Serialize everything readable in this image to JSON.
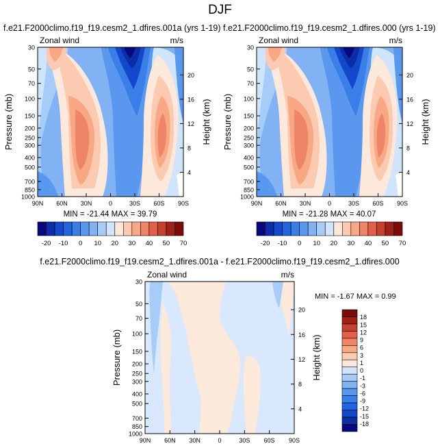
{
  "title": "DJF",
  "panels": [
    {
      "id": "p1",
      "title": "f.e21.F2000climo.f19_f19.cesm2_1.dfires.001a (yrs 1-19)",
      "left_label": "Zonal wind",
      "right_label": "m/s",
      "ylabel": "Pressure (mb)",
      "ylabel_right": "Height (km)",
      "stats": "MIN = -21.44   MAX =  39.79"
    },
    {
      "id": "p2",
      "title": "f.e21.F2000climo.f19_f19.cesm2_1.dfires.000 (yrs 1-19)",
      "left_label": "Zonal wind",
      "right_label": "m/s",
      "ylabel": "Pressure (mb)",
      "ylabel_right": "Height (km)",
      "stats": "MIN = -21.28   MAX =  40.07"
    },
    {
      "id": "p3",
      "title": "f.e21.F2000climo.f19_f19.cesm2_1.dfires.001a - f.e21.F2000climo.f19_f19.cesm2_1.dfires.000",
      "left_label": "Zonal wind",
      "right_label": "m/s",
      "ylabel": "Pressure (mb)",
      "ylabel_right": "Height (km)",
      "stats": "MIN = -1.67   MAX =  0.99"
    }
  ],
  "colors": {
    "abs_scale": [
      "#08087e",
      "#0c2ca8",
      "#1448cc",
      "#2064e0",
      "#3a7ee8",
      "#5a98f0",
      "#80b2f4",
      "#a8ccf8",
      "#d0e4fc",
      "#fde8dc",
      "#fccab0",
      "#f8a884",
      "#f08466",
      "#e0604a",
      "#c8402e",
      "#a02016",
      "#7a0c0c"
    ],
    "diff_scale": [
      "#08087e",
      "#0c2ca8",
      "#1448cc",
      "#2064e0",
      "#3a7ee8",
      "#5a98f0",
      "#80b2f4",
      "#a8ccf8",
      "#d0e4fc",
      "#fde8dc",
      "#fccab0",
      "#f8a884",
      "#f08466",
      "#e0604a",
      "#c8402e",
      "#a02016",
      "#7a0c0c"
    ]
  },
  "chart_data": [
    {
      "type": "heatmap",
      "title": "f.e21.F2000climo.f19_f19.cesm2_1.dfires.001a (yrs 1-19)",
      "ylabel": "Pressure (mb)",
      "xlabel": "",
      "x_ticks": [
        "90N",
        "60N",
        "30N",
        "0",
        "30S",
        "60S",
        "90S"
      ],
      "y_ticks": [
        "30",
        "50",
        "70",
        "100",
        "150",
        "200",
        "250",
        "300",
        "400",
        "500",
        "700",
        "850",
        "1000"
      ],
      "y_ticks_right": [
        "20",
        "16",
        "12",
        "8",
        "4"
      ],
      "ylim": [
        1000,
        30
      ],
      "colorbar_labels": [
        "-20",
        "-10",
        "0",
        "10",
        "20",
        "30",
        "40",
        "50",
        "70"
      ],
      "min": -21.44,
      "max": 39.79,
      "fields": [
        {
          "lat": 30,
          "p": 200,
          "u": 38
        },
        {
          "lat": -45,
          "p": 200,
          "u": 29
        },
        {
          "lat": 65,
          "p": 40,
          "u": 14
        },
        {
          "lat": -15,
          "p": 35,
          "u": -21
        }
      ]
    },
    {
      "type": "heatmap",
      "title": "f.e21.F2000climo.f19_f19.cesm2_1.dfires.000 (yrs 1-19)",
      "ylabel": "Pressure (mb)",
      "xlabel": "",
      "x_ticks": [
        "90N",
        "60N",
        "30N",
        "0",
        "30S",
        "60S",
        "90S"
      ],
      "y_ticks": [
        "30",
        "50",
        "70",
        "100",
        "150",
        "200",
        "250",
        "300",
        "400",
        "500",
        "700",
        "850",
        "1000"
      ],
      "y_ticks_right": [
        "20",
        "16",
        "12",
        "8",
        "4"
      ],
      "ylim": [
        1000,
        30
      ],
      "colorbar_labels": [
        "-20",
        "-10",
        "0",
        "10",
        "20",
        "30",
        "40",
        "50",
        "70"
      ],
      "min": -21.28,
      "max": 40.07,
      "fields": [
        {
          "lat": 30,
          "p": 200,
          "u": 39
        },
        {
          "lat": -45,
          "p": 200,
          "u": 29
        },
        {
          "lat": 65,
          "p": 40,
          "u": 14
        },
        {
          "lat": -15,
          "p": 35,
          "u": -21
        }
      ]
    },
    {
      "type": "heatmap",
      "title": "f.e21.F2000climo.f19_f19.cesm2_1.dfires.001a - f.e21.F2000climo.f19_f19.cesm2_1.dfires.000",
      "ylabel": "Pressure (mb)",
      "xlabel": "",
      "x_ticks": [
        "90N",
        "60N",
        "30N",
        "0",
        "30S",
        "60S",
        "90S"
      ],
      "y_ticks": [
        "30",
        "50",
        "70",
        "100",
        "150",
        "200",
        "250",
        "300",
        "400",
        "500",
        "700",
        "850",
        "1000"
      ],
      "y_ticks_right": [
        "20",
        "16",
        "12",
        "8",
        "4"
      ],
      "ylim": [
        1000,
        30
      ],
      "colorbar_labels": [
        "18",
        "15",
        "12",
        "9",
        "6",
        "3",
        "1",
        "0",
        "-1",
        "-3",
        "-6",
        "-9",
        "-12",
        "-15",
        "-18"
      ],
      "min": -1.67,
      "max": 0.99
    }
  ]
}
